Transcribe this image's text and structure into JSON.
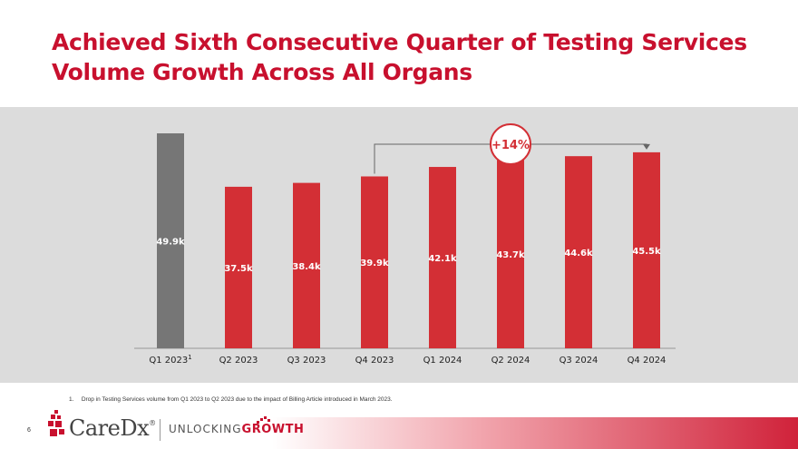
{
  "title": "Achieved Sixth Consecutive Quarter of Testing Services Volume Growth Across All Organs",
  "chart_data": {
    "type": "bar",
    "categories": [
      "Q1 2023",
      "Q2 2023",
      "Q3 2023",
      "Q4 2023",
      "Q1 2024",
      "Q2 2024",
      "Q3 2024",
      "Q4 2024"
    ],
    "footnote_marker": "1",
    "values": [
      49.9,
      37.5,
      38.4,
      39.9,
      42.1,
      43.7,
      44.6,
      45.5
    ],
    "data_labels": [
      "49.9k",
      "37.5k",
      "38.4k",
      "39.9k",
      "42.1k",
      "43.7k",
      "44.6k",
      "45.5k"
    ],
    "colors": [
      "#767676",
      "#d32f35",
      "#d32f35",
      "#d32f35",
      "#d32f35",
      "#d32f35",
      "#d32f35",
      "#d32f35"
    ],
    "ylim": [
      0,
      49.9
    ],
    "annotation": {
      "text": "+14%",
      "from": "Q4 2023",
      "to": "Q4 2024"
    },
    "grid": false
  },
  "footnote": {
    "number": "1.",
    "text": "Drop in Testing Services volume from Q1 2023 to Q2 2023 due to the impact of Billing Article introduced in March 2023."
  },
  "footer": {
    "page_number": "6",
    "logo_text": "CareDx",
    "logo_mark": "®",
    "tagline_light": "UNLOCKING",
    "tagline_bold": "GROWTH"
  },
  "colors": {
    "brand_red": "#c8102e",
    "bar_red": "#d32f35",
    "bar_gray": "#767676",
    "panel": "#dcdcdc"
  }
}
